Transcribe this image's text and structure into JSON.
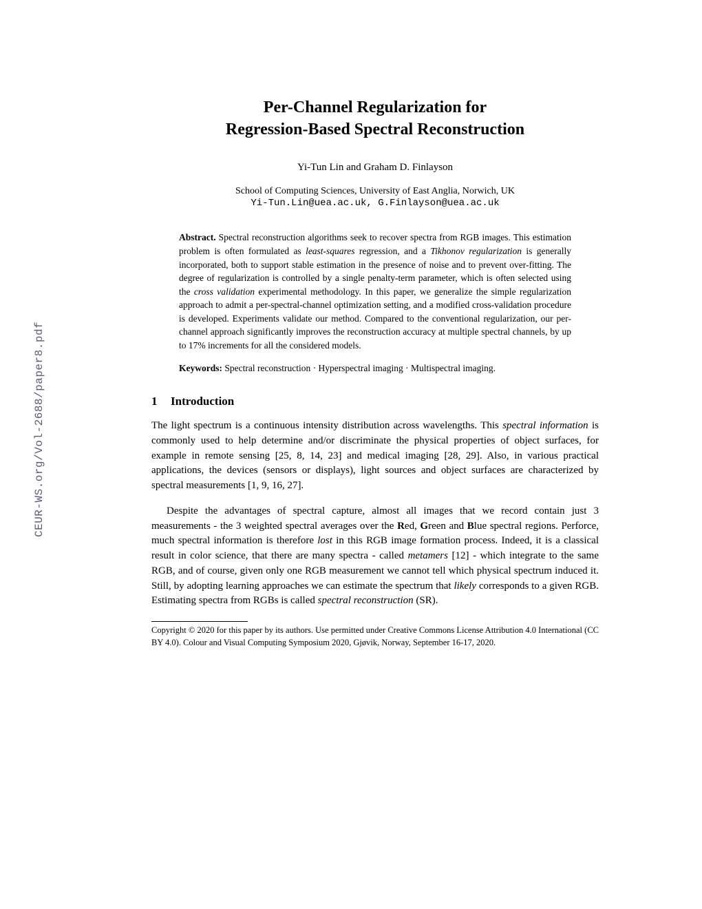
{
  "sidebar": {
    "text": "CEUR-WS.org/Vol-2688/paper8.pdf",
    "color": "#595b7a",
    "fontsize": 16
  },
  "title": {
    "line1": "Per-Channel Regularization for",
    "line2": "Regression-Based Spectral Reconstruction",
    "fontsize": 24
  },
  "authors": "Yi-Tun Lin and Graham D. Finlayson",
  "affiliation": "School of Computing Sciences, University of East Anglia, Norwich, UK",
  "emails": "Yi-Tun.Lin@uea.ac.uk, G.Finlayson@uea.ac.uk",
  "abstract": {
    "label": "Abstract.",
    "text_part1": " Spectral reconstruction algorithms seek to recover spectra from RGB images. This estimation problem is often formulated as ",
    "italic1": "least-squares",
    "text_part2": " regression, and a ",
    "italic2": "Tikhonov regularization",
    "text_part3": " is generally incorporated, both to support stable estimation in the presence of noise and to prevent over-fitting. The degree of regularization is controlled by a single penalty-term parameter, which is often selected using the ",
    "italic3": "cross validation",
    "text_part4": " experimental methodology. In this paper, we generalize the simple regularization approach to admit a per-spectral-channel optimization setting, and a modified cross-validation procedure is developed. Experiments validate our method. Compared to the conventional regularization, our per-channel approach significantly improves the reconstruction accuracy at multiple spectral channels, by up to 17% increments for all the considered models."
  },
  "keywords": {
    "label": "Keywords:",
    "text": " Spectral reconstruction · Hyperspectral imaging · Multispectral imaging."
  },
  "section1": {
    "number": "1",
    "title": "Introduction"
  },
  "para1": {
    "t1": "The light spectrum is a continuous intensity distribution across wavelengths. This ",
    "i1": "spectral information",
    "t2": " is commonly used to help determine and/or discriminate the physical properties of object surfaces, for example in remote sensing [25, 8, 14, 23] and medical imaging [28, 29]. Also, in various practical applications, the devices (sensors or displays), light sources and object surfaces are characterized by spectral measurements [1, 9, 16, 27]."
  },
  "para2": {
    "t1": "Despite the advantages of spectral capture, almost all images that we record contain just 3 measurements - the 3 weighted spectral averages over the ",
    "b1": "R",
    "t2": "ed, ",
    "b2": "G",
    "t3": "reen and ",
    "b3": "B",
    "t4": "lue spectral regions. Perforce, much spectral information is therefore ",
    "i1": "lost",
    "t5": " in this RGB image formation process. Indeed, it is a classical result in color science, that there are many spectra - called ",
    "i2": "metamers",
    "t6": " [12] - which integrate to the same RGB, and of course, given only one RGB measurement we cannot tell which physical spectrum induced it. Still, by adopting learning approaches we can estimate the spectrum that ",
    "i3": "likely",
    "t7": " corresponds to a given RGB. Estimating spectra from RGBs is called ",
    "i4": "spectral reconstruction",
    "t8": " (SR)."
  },
  "footnote": {
    "text": "Copyright © 2020 for this paper by its authors. Use permitted under Creative Commons License Attribution 4.0 International (CC BY 4.0). Colour and Visual Computing Symposium 2020, Gjøvik, Norway, September 16-17, 2020."
  },
  "colors": {
    "text": "#000000",
    "background": "#ffffff"
  }
}
